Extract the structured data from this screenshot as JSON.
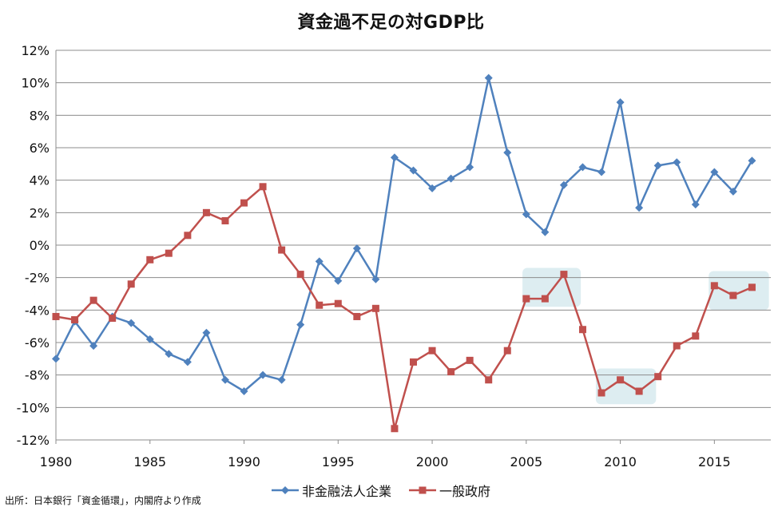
{
  "chart_data": {
    "type": "line",
    "title": "資金過不足の対GDP比",
    "xlabel": "",
    "ylabel": "",
    "x": [
      1980,
      1981,
      1982,
      1983,
      1984,
      1985,
      1986,
      1987,
      1988,
      1989,
      1990,
      1991,
      1992,
      1993,
      1994,
      1995,
      1996,
      1997,
      1998,
      1999,
      2000,
      2001,
      2002,
      2003,
      2004,
      2005,
      2006,
      2007,
      2008,
      2009,
      2010,
      2011,
      2012,
      2013,
      2014,
      2015,
      2016,
      2017
    ],
    "xlim": [
      1980,
      2018
    ],
    "ylim": [
      -12,
      12
    ],
    "x_ticks": [
      1980,
      1985,
      1990,
      1995,
      2000,
      2005,
      2010,
      2015
    ],
    "x_tick_labels": [
      "1980",
      "1985",
      "1990",
      "1995",
      "2000",
      "2005",
      "2010",
      "2015"
    ],
    "y_ticks": [
      12,
      10,
      8,
      6,
      4,
      2,
      0,
      -2,
      -4,
      -6,
      -8,
      -10,
      -12
    ],
    "y_tick_labels": [
      "12%",
      "10%",
      "8%",
      "6%",
      "4%",
      "2%",
      "0%",
      "-2%",
      "-4%",
      "-6%",
      "-8%",
      "-10%",
      "-12%"
    ],
    "grid": "horizontal",
    "legend_position": "bottom",
    "series": [
      {
        "name": "非金融法人企業",
        "color": "#4F81BD",
        "marker": "diamond",
        "values": [
          -7.0,
          -4.7,
          -6.2,
          -4.4,
          -4.8,
          -5.8,
          -6.7,
          -7.2,
          -5.4,
          -8.3,
          -9.0,
          -8.0,
          -8.3,
          -4.9,
          -1.0,
          -2.2,
          -0.2,
          -2.1,
          5.4,
          4.6,
          3.5,
          4.1,
          4.8,
          10.3,
          5.7,
          1.9,
          0.8,
          3.7,
          4.8,
          4.5,
          8.8,
          2.3,
          4.9,
          5.1,
          2.5,
          4.5,
          3.3,
          5.2
        ]
      },
      {
        "name": "一般政府",
        "color": "#C0504D",
        "marker": "square",
        "values": [
          -4.4,
          -4.6,
          -3.4,
          -4.5,
          -2.4,
          -0.9,
          -0.5,
          0.6,
          2.0,
          1.5,
          2.6,
          3.6,
          -0.3,
          -1.8,
          -3.7,
          -3.6,
          -4.4,
          -3.9,
          -11.3,
          -7.2,
          -6.5,
          -7.8,
          -7.1,
          -8.3,
          -6.5,
          -3.3,
          -3.3,
          -1.8,
          -5.2,
          -9.1,
          -8.3,
          -9.0,
          -8.1,
          -6.2,
          -5.6,
          -2.5,
          -3.1,
          -2.6
        ]
      }
    ],
    "highlights": [
      {
        "x_range": [
          2004.8,
          2007.9
        ],
        "y_range": [
          -3.8,
          -1.4
        ]
      },
      {
        "x_range": [
          2008.7,
          2011.9
        ],
        "y_range": [
          -9.8,
          -7.6
        ]
      },
      {
        "x_range": [
          2014.7,
          2017.9
        ],
        "y_range": [
          -4.0,
          -1.6
        ]
      }
    ],
    "highlight_color": "#D9EBF0"
  },
  "source_note": "出所：日本銀行「資金循環」，内閣府より作成"
}
